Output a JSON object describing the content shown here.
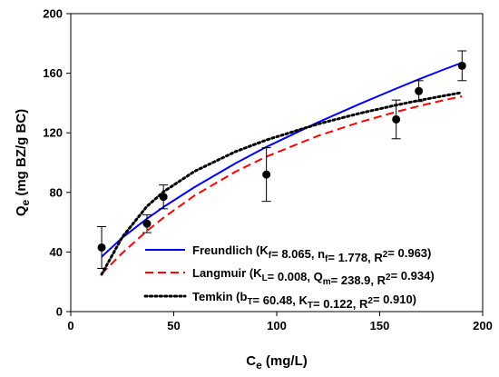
{
  "chart_data": {
    "type": "scatter",
    "title": "",
    "xlabel": {
      "main": "C",
      "sub": "e",
      "rest": " (mg/L)"
    },
    "ylabel": {
      "main": "Q",
      "sub": "e",
      "rest": " (mg BZ/g BC)"
    },
    "xlim": [
      0,
      200
    ],
    "ylim": [
      0,
      200
    ],
    "xticks": [
      0,
      50,
      100,
      150,
      200
    ],
    "yticks": [
      0,
      40,
      80,
      120,
      160,
      200
    ],
    "grid": false,
    "legend_position": "bottom-right",
    "points": {
      "name": "",
      "marker": "filled-circle",
      "color": "#000000",
      "x": [
        15,
        37,
        45,
        95,
        158,
        169,
        190
      ],
      "y": [
        43,
        59,
        77,
        92,
        129,
        148,
        165
      ],
      "error": [
        14,
        6,
        8,
        18,
        13,
        7,
        10
      ]
    },
    "series": [
      {
        "name": "Freundlich",
        "legend": [
          {
            "t": "Freundlich (K"
          },
          {
            "t": "f",
            "sub": true
          },
          {
            "t": "= 8.065, n"
          },
          {
            "t": "f",
            "sub": true
          },
          {
            "t": "= 1.778, R"
          },
          {
            "t": "2",
            "sup": true
          },
          {
            "t": "= 0.963)"
          }
        ],
        "color": "#0000ff",
        "style": "solid",
        "x": [
          15,
          25,
          37,
          45,
          60,
          80,
          95,
          120,
          140,
          158,
          169,
          180,
          190
        ],
        "y": [
          36.8,
          49.6,
          62.4,
          70.2,
          83.5,
          99.5,
          110.5,
          127.0,
          139.2,
          149.7,
          155.9,
          161.9,
          167.1
        ]
      },
      {
        "name": "Langmuir",
        "legend": [
          {
            "t": "Langmuir (K"
          },
          {
            "t": "L",
            "sub": true
          },
          {
            "t": "= 0.008, Q"
          },
          {
            "t": "m",
            "sub": true
          },
          {
            "t": "= 238.9, R"
          },
          {
            "t": "2",
            "sup": true
          },
          {
            "t": "= 0.934)"
          }
        ],
        "color": "#ff0000",
        "style": "dashed",
        "x": [
          15,
          25,
          37,
          45,
          60,
          80,
          95,
          120,
          140,
          158,
          169,
          180,
          190
        ],
        "y": [
          25.3,
          39.3,
          54.2,
          63.0,
          77.8,
          93.9,
          104.0,
          117.9,
          127.0,
          134.1,
          137.9,
          141.5,
          144.5
        ]
      },
      {
        "name": "Temkin",
        "legend": [
          {
            "t": "Temkin (b"
          },
          {
            "t": "T",
            "sub": true
          },
          {
            "t": "= 60.48, K"
          },
          {
            "t": "T",
            "sub": true
          },
          {
            "t": "= 0.122, R"
          },
          {
            "t": "2",
            "sup": true
          },
          {
            "t": "= 0.910)"
          }
        ],
        "color": "#000000",
        "style": "dotted",
        "x": [
          15,
          25,
          37,
          45,
          60,
          80,
          95,
          120,
          140,
          158,
          169,
          180,
          190
        ],
        "y": [
          25.0,
          50.0,
          70.7,
          80.4,
          94.1,
          107.4,
          115.2,
          125.9,
          133.0,
          138.6,
          141.7,
          144.6,
          147.1
        ]
      }
    ]
  }
}
